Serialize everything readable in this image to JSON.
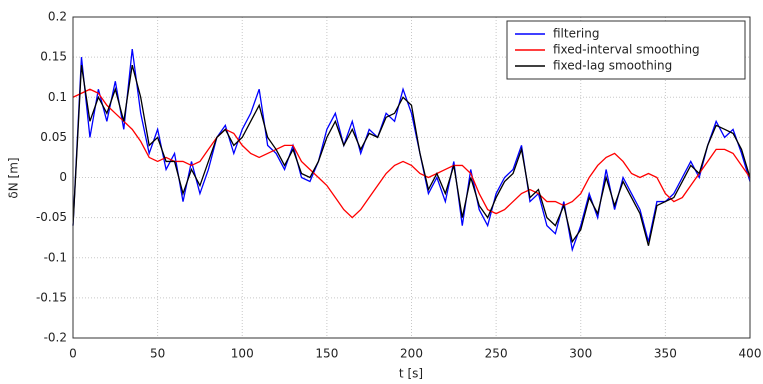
{
  "chart_data": {
    "type": "line",
    "xlabel": "t [s]",
    "ylabel": "δN [m]",
    "xlim": [
      0,
      400
    ],
    "ylim": [
      -0.2,
      0.2
    ],
    "xticks": [
      0,
      50,
      100,
      150,
      200,
      250,
      300,
      350,
      400
    ],
    "yticks": [
      -0.2,
      -0.15,
      -0.1,
      -0.05,
      0,
      0.05,
      0.1,
      0.15,
      0.2
    ],
    "grid": true,
    "legend": "upper right",
    "x": [
      0,
      5,
      10,
      15,
      20,
      25,
      30,
      35,
      40,
      45,
      50,
      55,
      60,
      65,
      70,
      75,
      80,
      85,
      90,
      95,
      100,
      105,
      110,
      115,
      120,
      125,
      130,
      135,
      140,
      145,
      150,
      155,
      160,
      165,
      170,
      175,
      180,
      185,
      190,
      195,
      200,
      205,
      210,
      215,
      220,
      225,
      230,
      235,
      240,
      245,
      250,
      255,
      260,
      265,
      270,
      275,
      280,
      285,
      290,
      295,
      300,
      305,
      310,
      315,
      320,
      325,
      330,
      335,
      340,
      345,
      350,
      355,
      360,
      365,
      370,
      375,
      380,
      385,
      390,
      395,
      400
    ],
    "series": [
      {
        "name": "filtering",
        "color": "#0000ff",
        "values": [
          -0.06,
          0.15,
          0.05,
          0.11,
          0.07,
          0.12,
          0.06,
          0.16,
          0.08,
          0.03,
          0.06,
          0.01,
          0.03,
          -0.03,
          0.02,
          -0.02,
          0.01,
          0.05,
          0.065,
          0.03,
          0.06,
          0.08,
          0.11,
          0.04,
          0.03,
          0.01,
          0.04,
          0.0,
          -0.005,
          0.02,
          0.06,
          0.08,
          0.04,
          0.07,
          0.03,
          0.06,
          0.05,
          0.08,
          0.07,
          0.11,
          0.08,
          0.03,
          -0.02,
          0.0,
          -0.03,
          0.02,
          -0.06,
          0.01,
          -0.04,
          -0.06,
          -0.02,
          0.0,
          0.01,
          0.04,
          -0.03,
          -0.02,
          -0.06,
          -0.07,
          -0.03,
          -0.09,
          -0.06,
          -0.02,
          -0.05,
          0.01,
          -0.04,
          0.0,
          -0.02,
          -0.04,
          -0.08,
          -0.03,
          -0.03,
          -0.02,
          0.0,
          0.02,
          0.0,
          0.04,
          0.07,
          0.05,
          0.06,
          0.03,
          -0.005
        ]
      },
      {
        "name": "fixed-interval smoothing",
        "color": "#ff0000",
        "values": [
          0.1,
          0.105,
          0.11,
          0.105,
          0.09,
          0.08,
          0.07,
          0.06,
          0.045,
          0.025,
          0.02,
          0.025,
          0.02,
          0.02,
          0.015,
          0.02,
          0.035,
          0.05,
          0.06,
          0.055,
          0.04,
          0.03,
          0.025,
          0.03,
          0.035,
          0.04,
          0.04,
          0.02,
          0.01,
          0.0,
          -0.01,
          -0.025,
          -0.04,
          -0.05,
          -0.04,
          -0.025,
          -0.01,
          0.005,
          0.015,
          0.02,
          0.015,
          0.005,
          0.0,
          0.005,
          0.01,
          0.015,
          0.015,
          0.005,
          -0.02,
          -0.04,
          -0.045,
          -0.04,
          -0.03,
          -0.02,
          -0.015,
          -0.02,
          -0.03,
          -0.03,
          -0.035,
          -0.03,
          -0.02,
          0.0,
          0.015,
          0.025,
          0.03,
          0.02,
          0.005,
          0.0,
          0.005,
          0.0,
          -0.02,
          -0.03,
          -0.025,
          -0.01,
          0.005,
          0.02,
          0.035,
          0.035,
          0.03,
          0.015,
          0.0
        ]
      },
      {
        "name": "fixed-lag smoothing",
        "color": "#000000",
        "values": [
          -0.06,
          0.14,
          0.07,
          0.1,
          0.08,
          0.11,
          0.07,
          0.14,
          0.1,
          0.04,
          0.05,
          0.02,
          0.02,
          -0.02,
          0.01,
          -0.01,
          0.02,
          0.05,
          0.06,
          0.04,
          0.05,
          0.07,
          0.09,
          0.05,
          0.035,
          0.015,
          0.035,
          0.005,
          0.0,
          0.02,
          0.05,
          0.07,
          0.04,
          0.06,
          0.035,
          0.055,
          0.05,
          0.075,
          0.08,
          0.1,
          0.09,
          0.03,
          -0.015,
          0.005,
          -0.02,
          0.015,
          -0.05,
          0.0,
          -0.035,
          -0.05,
          -0.025,
          -0.005,
          0.005,
          0.035,
          -0.025,
          -0.015,
          -0.05,
          -0.06,
          -0.035,
          -0.08,
          -0.065,
          -0.025,
          -0.045,
          0.0,
          -0.035,
          -0.005,
          -0.025,
          -0.045,
          -0.085,
          -0.035,
          -0.03,
          -0.025,
          -0.005,
          0.015,
          0.005,
          0.04,
          0.065,
          0.06,
          0.055,
          0.035,
          0.0
        ]
      }
    ]
  }
}
